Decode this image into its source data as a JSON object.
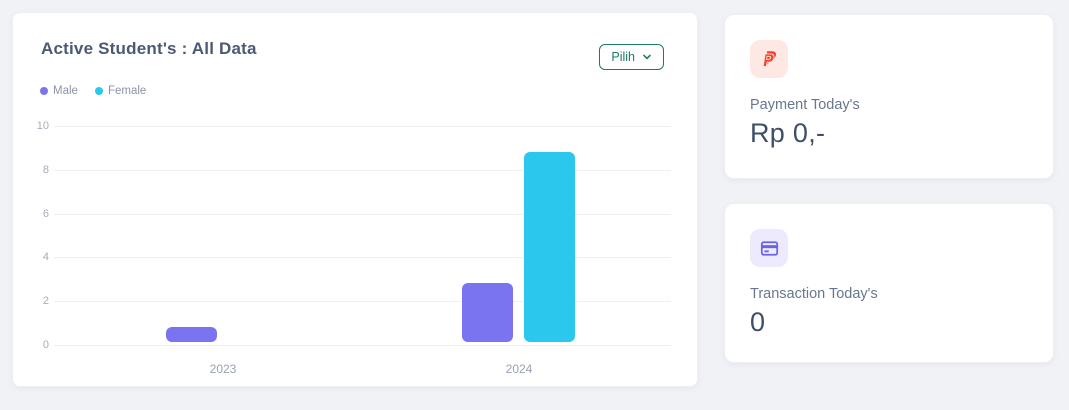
{
  "chart_card": {
    "title": "Active Student's : All Data",
    "filter_button": {
      "label": "Pilih",
      "color": "#1b7b64"
    },
    "legend": [
      {
        "label": "Male",
        "color": "#7b74f1"
      },
      {
        "label": "Female",
        "color": "#2bc7ec"
      }
    ]
  },
  "chart_data": {
    "type": "bar",
    "title": "Active Student's : All Data",
    "categories": [
      "2023",
      "2024"
    ],
    "series": [
      {
        "name": "Male",
        "color": "#7b74f1",
        "values": [
          1,
          3
        ]
      },
      {
        "name": "Female",
        "color": "#2bc7ec",
        "values": [
          0,
          9
        ]
      }
    ],
    "xlabel": "",
    "ylabel": "",
    "ylim": [
      0,
      10
    ],
    "yticks": [
      0,
      2,
      4,
      6,
      8,
      10
    ],
    "grid": true,
    "legend_position": "top-left"
  },
  "stat_cards": {
    "payment": {
      "label": "Payment Today's",
      "value": "Rp 0,-",
      "icon": "paypal-icon",
      "icon_color": "#f8402a",
      "icon_bg": "#fde8e3"
    },
    "transaction": {
      "label": "Transaction Today's",
      "value": "0",
      "icon": "credit-card-icon",
      "icon_color": "#6a63ea",
      "icon_bg": "#eceafc"
    }
  },
  "page": {
    "background": "#f1f2f6"
  }
}
